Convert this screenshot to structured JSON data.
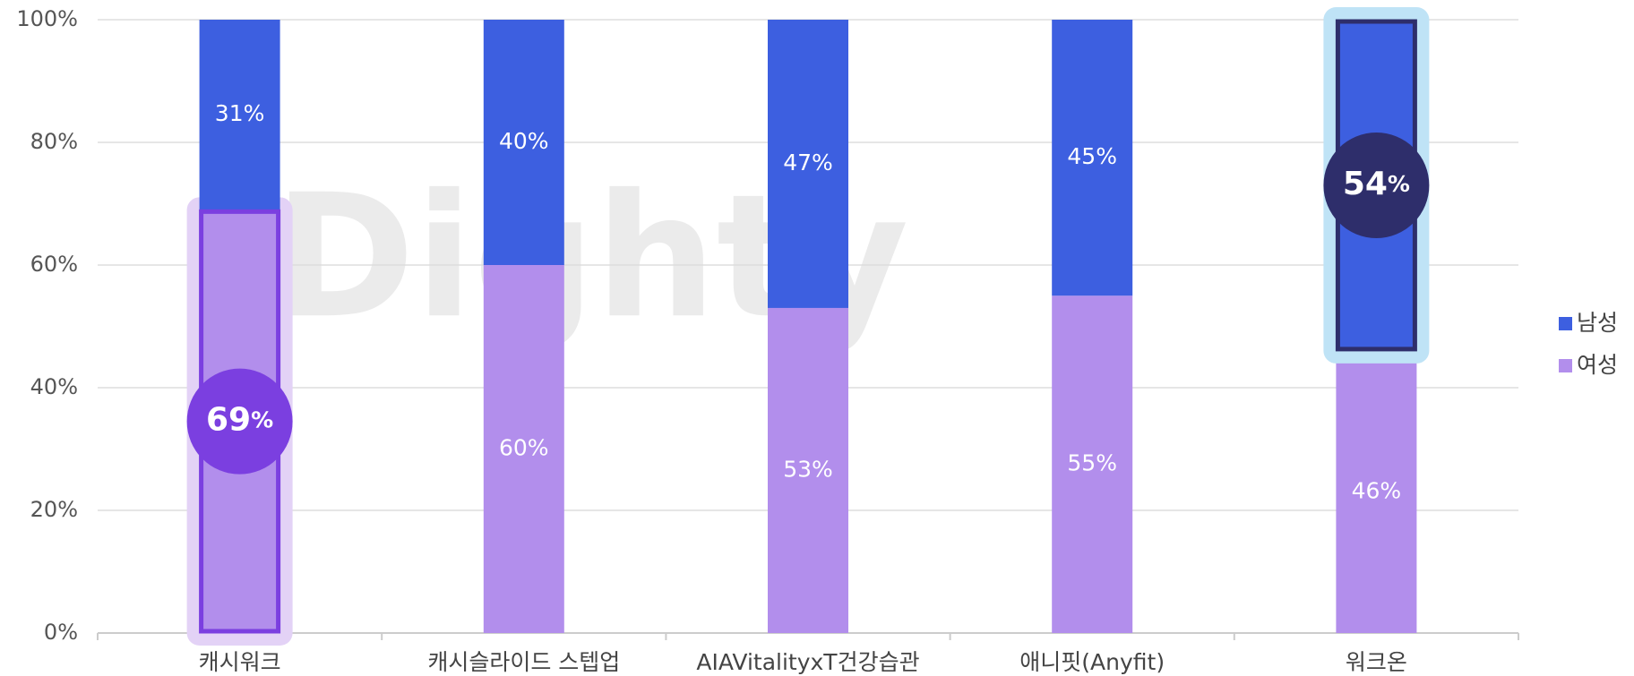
{
  "chart_data": {
    "type": "stacked_bar_100",
    "watermark": "Dighty",
    "categories": [
      "캐시워크",
      "캐시슬라이드 스텝업",
      "AIAVitalityxT건강습관",
      "애니핏(Anyfit)",
      "워크온"
    ],
    "series": [
      {
        "name": "남성",
        "color": "#3d5fe0",
        "values": [
          31,
          40,
          47,
          45,
          54
        ],
        "value_labels": [
          "31%",
          "40%",
          "47%",
          "45%",
          "54%"
        ]
      },
      {
        "name": "여성",
        "color": "#b28eec",
        "values": [
          69,
          60,
          53,
          55,
          46
        ],
        "value_labels": [
          "69%",
          "60%",
          "53%",
          "55%",
          "46%"
        ]
      }
    ],
    "highlights": [
      {
        "series": 1,
        "category": 0,
        "color": "#7b3fe0",
        "background": "#e3d2f6"
      },
      {
        "series": 0,
        "category": 4,
        "color": "#2e2e6b",
        "background": "#bfe3f6"
      }
    ],
    "ylim": [
      0,
      100
    ],
    "yticks": [
      {
        "value": 0,
        "label": "0%"
      },
      {
        "value": 20,
        "label": "20%"
      },
      {
        "value": 40,
        "label": "40%"
      },
      {
        "value": 60,
        "label": "60%"
      },
      {
        "value": 80,
        "label": "80%"
      },
      {
        "value": 100,
        "label": "100%"
      }
    ],
    "grid": true,
    "legend": "right"
  }
}
